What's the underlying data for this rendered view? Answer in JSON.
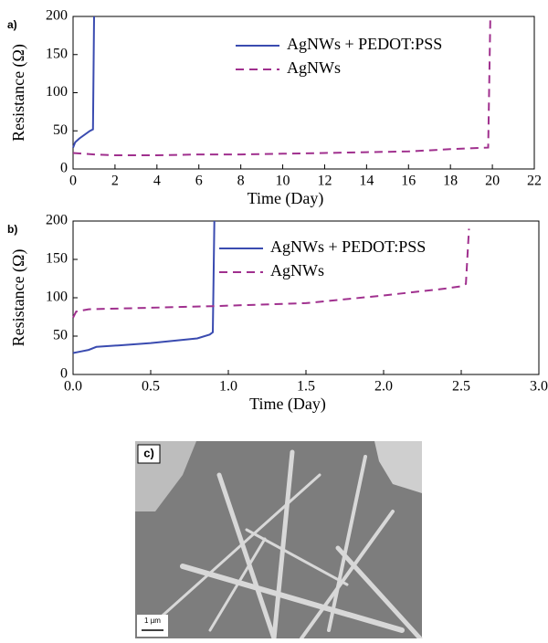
{
  "chart_data": [
    {
      "type": "line",
      "panel_label": "a)",
      "x_label": "Time (Day)",
      "y_label": "Resistance (Ω)",
      "xlim": [
        0,
        22
      ],
      "xticks": [
        0,
        2,
        4,
        6,
        8,
        10,
        12,
        14,
        16,
        18,
        20,
        22
      ],
      "ylim": [
        0,
        200
      ],
      "yticks": [
        0,
        50,
        100,
        150,
        200
      ],
      "legend": "upper right",
      "series": [
        {
          "name": "AgNWs + PEDOT:PSS",
          "color": "#3a4bb0",
          "linestyle": "solid",
          "x": [
            0,
            0.1,
            0.3,
            0.8,
            0.95,
            1.0
          ],
          "values": [
            28,
            35,
            40,
            50,
            52,
            200
          ]
        },
        {
          "name": "AgNWs",
          "color": "#a0308e",
          "linestyle": "dashed",
          "x": [
            0,
            1,
            2,
            4,
            6,
            8,
            10,
            12,
            14,
            16,
            18,
            19.8,
            19.9
          ],
          "values": [
            21,
            19,
            18,
            18,
            19,
            19,
            20,
            21,
            22,
            23,
            26,
            28,
            195
          ]
        }
      ]
    },
    {
      "type": "line",
      "panel_label": "b)",
      "x_label": "Time (Day)",
      "y_label": "Resistance (Ω)",
      "xlim": [
        0,
        3
      ],
      "xticks": [
        {
          "value": 0,
          "label": "0.0"
        },
        0.5,
        {
          "value": 1,
          "label": "1.0"
        },
        1.5,
        {
          "value": 2,
          "label": "2.0"
        },
        2.5,
        {
          "value": 3,
          "label": "3.0"
        }
      ],
      "ylim": [
        0,
        200
      ],
      "yticks": [
        0,
        50,
        100,
        150,
        200
      ],
      "legend": "upper right",
      "series": [
        {
          "name": "AgNWs + PEDOT:PSS",
          "color": "#3a4bb0",
          "linestyle": "solid",
          "x": [
            0,
            0.05,
            0.1,
            0.15,
            0.3,
            0.5,
            0.8,
            0.88,
            0.9,
            0.91
          ],
          "values": [
            28,
            30,
            32,
            36,
            38,
            41,
            47,
            52,
            55,
            200
          ]
        },
        {
          "name": "AgNWs",
          "color": "#a0308e",
          "linestyle": "dashed",
          "x": [
            0,
            0.02,
            0.1,
            0.3,
            0.9,
            1.5,
            2.0,
            2.4,
            2.5,
            2.53,
            2.55
          ],
          "values": [
            74,
            82,
            85,
            86,
            89,
            93,
            103,
            112,
            115,
            118,
            190
          ]
        }
      ]
    }
  ],
  "image": {
    "label": "c)",
    "scale_bar": "1 µm"
  }
}
